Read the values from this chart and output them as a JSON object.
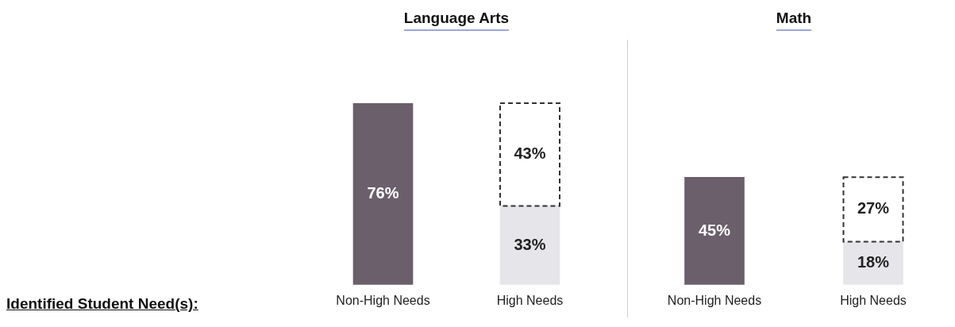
{
  "chart_data": [
    {
      "type": "bar",
      "title": "Language Arts",
      "stacked": true,
      "categories": [
        "Non-High Needs",
        "High Needs"
      ],
      "annotations": [
        "Identified Student Need(s):"
      ],
      "series": [
        {
          "colors": [
            "#6a5f6b",
            "#e6e6ea"
          ],
          "values": [
            76,
            33
          ],
          "value_labels": [
            "76%",
            "33%"
          ]
        },
        {
          "color": "#333333",
          "line_style": "dashed",
          "values": [
            null,
            43
          ],
          "value_labels": [
            null,
            "43%"
          ]
        }
      ]
    },
    {
      "type": "bar",
      "title": "Math",
      "stacked": true,
      "categories": [
        "Non-High Needs",
        "High Needs"
      ],
      "series": [
        {
          "colors": [
            "#6a5f6b",
            "#e6e6ea"
          ],
          "values": [
            45,
            18
          ],
          "value_labels": [
            "45%",
            "18%"
          ]
        },
        {
          "color": "#333333",
          "line_style": "dashed",
          "values": [
            null,
            27
          ],
          "value_labels": [
            null,
            "27%"
          ]
        }
      ]
    }
  ]
}
